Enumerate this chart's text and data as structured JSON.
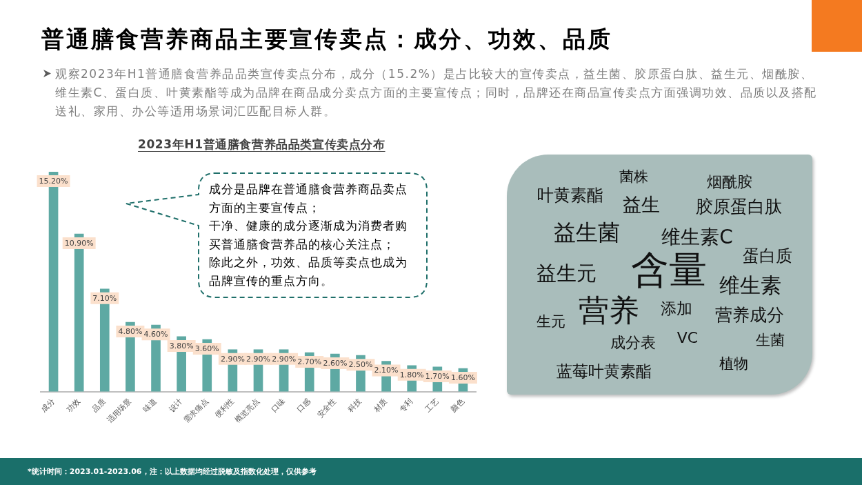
{
  "chart_data": [
    {
      "type": "bar",
      "title": "2023年H1普通膳食营养品品类宣传卖点分布",
      "categories": [
        "成分",
        "功效",
        "品质",
        "适用场景",
        "味道",
        "设计",
        "需求痛点",
        "便利性",
        "概览亮点",
        "口味",
        "口感",
        "安全性",
        "科技",
        "材质",
        "专利",
        "工艺",
        "颜色"
      ],
      "values": [
        15.2,
        10.9,
        7.1,
        4.8,
        4.6,
        3.8,
        3.6,
        2.9,
        2.9,
        2.9,
        2.7,
        2.6,
        2.5,
        2.1,
        1.8,
        1.7,
        1.6
      ],
      "value_labels": [
        "15.20%",
        "10.90%",
        "7.10%",
        "4.80%",
        "4.60%",
        "3.80%",
        "3.60%",
        "2.90%",
        "2.90%",
        "2.90%",
        "2.70%",
        "2.60%",
        "2.50%",
        "2.10%",
        "1.80%",
        "1.70%",
        "1.60%"
      ],
      "color": "#5ea9a3",
      "annotations": [
        "普通膳食营养商品主要宣传卖点：成分、功效、品质",
        "观察2023年H1普通膳食营养品品类宣传卖点分布，成分（15.2%）是占比较大的宣传卖点，益生菌、胶原蛋白肽、益生元、烟酰胺、维生素C、蛋白质、叶黄素酯等成为品牌在商品成分卖点方面的主要宣传点；同时，品牌还在商品宣传卖点方面强调功效、品质以及搭配送礼、家用、办公等适用场景词汇匹配目标人群。",
        "成分是品牌在普通膳食营养商品卖点方面的主要宣传点；",
        "干净、健康的成分逐渐成为消费者购买普通膳食营养品的核心关注点；",
        "除此之外，功效、品质等卖点也成为品牌宣传的重点方向。",
        "*统计时间：2023.01-2023.06，注：以上数据均经过脱敏及指数化处理，仅供参考"
      ]
    },
    {
      "type": "other",
      "annotations": [
        "菌株",
        "烟酰胺",
        "叶黄素酯",
        "益生",
        "胶原蛋白肽",
        "益生菌",
        "维生素C",
        "蛋白质",
        "含量",
        "益生元",
        "维生素",
        "营养",
        "添加",
        "营养成分",
        "生元",
        "成分表",
        "VC",
        "生菌",
        "植物",
        "蓝莓叶黄素酯"
      ]
    }
  ]
}
